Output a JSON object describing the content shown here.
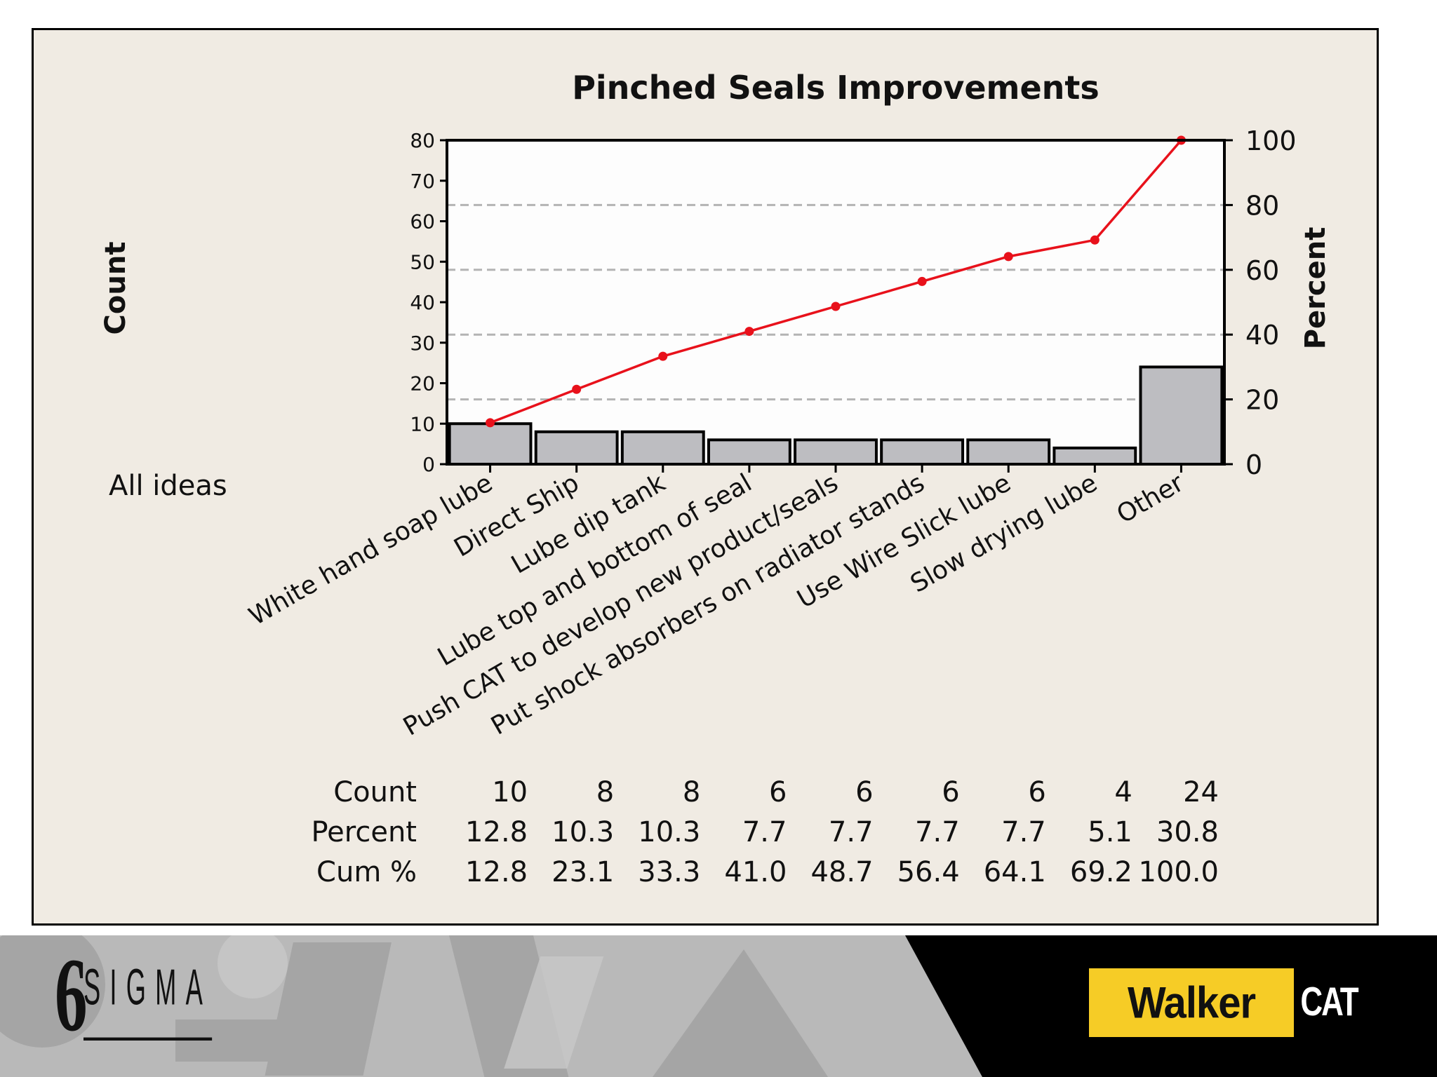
{
  "chart_data": {
    "type": "bar",
    "title": "Pinched Seals Improvements",
    "ylabel": "Count",
    "y2label": "Percent",
    "group_label": "All ideas",
    "categories": [
      "White hand soap lube",
      "Direct Ship",
      "Lube dip tank",
      "Lube top and bottom of seal",
      "Push CAT to develop new product/seals",
      "Put shock absorbers on radiator stands",
      "Use Wire Slick lube",
      "Slow drying lube",
      "Other"
    ],
    "values": [
      10,
      8,
      8,
      6,
      6,
      6,
      6,
      4,
      24
    ],
    "cumulative_percent_line": [
      12.8,
      23.1,
      33.3,
      41.0,
      48.7,
      56.4,
      64.1,
      69.2,
      100.0
    ],
    "ylim": [
      0,
      80
    ],
    "y2lim": [
      0,
      100
    ],
    "yticks": [
      "0",
      "10",
      "20",
      "30",
      "40",
      "50",
      "60",
      "70",
      "80"
    ],
    "y2ticks": [
      "0",
      "20",
      "40",
      "60",
      "80",
      "100"
    ],
    "grid": true,
    "colors": {
      "bars": "#bdbdc1",
      "line": "#e8111b",
      "grid": "#b4b4b4"
    },
    "table": {
      "rows": [
        {
          "label": "Count",
          "values": [
            "10",
            "8",
            "8",
            "6",
            "6",
            "6",
            "6",
            "4",
            "24"
          ]
        },
        {
          "label": "Percent",
          "values": [
            "12.8",
            "10.3",
            "10.3",
            "7.7",
            "7.7",
            "7.7",
            "7.7",
            "5.1",
            "30.8"
          ]
        },
        {
          "label": "Cum %",
          "values": [
            "12.8",
            "23.1",
            "33.3",
            "41.0",
            "48.7",
            "56.4",
            "64.1",
            "69.2",
            "100.0"
          ]
        }
      ]
    }
  },
  "footer": {
    "left_logo": {
      "number": "6",
      "word": "SIGMA"
    },
    "right_logo": {
      "primary": "Walker",
      "secondary": "CAT"
    },
    "colors": {
      "walker_yellow": "#f6cc26",
      "band_black": "#000000"
    }
  }
}
